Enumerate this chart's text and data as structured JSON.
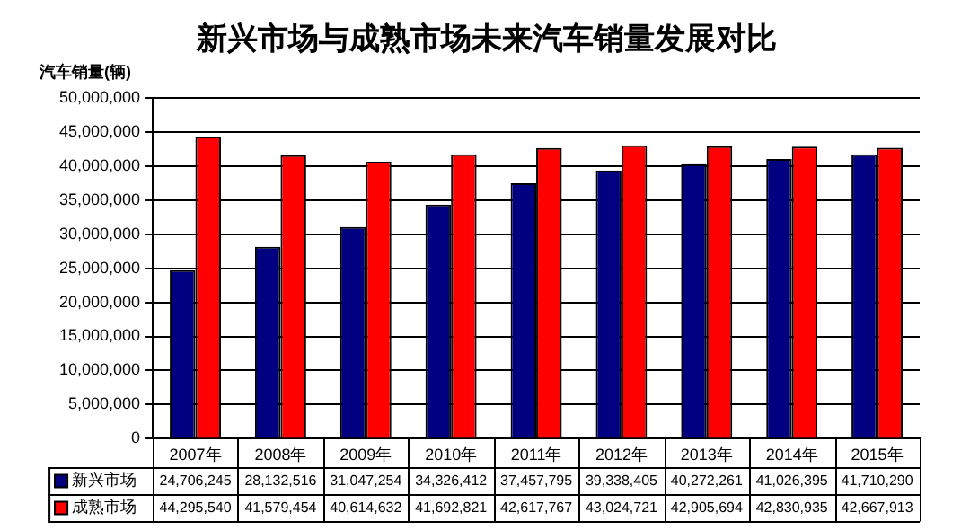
{
  "chart_data": {
    "type": "bar",
    "title": "新兴市场与成熟市场未来汽车销量发展对比",
    "ylabel": "汽车销量(辆)",
    "categories": [
      "2007年",
      "2008年",
      "2009年",
      "2010年",
      "2011年",
      "2012年",
      "2013年",
      "2014年",
      "2015年"
    ],
    "series": [
      {
        "name": "新兴市场",
        "color": "#000080",
        "values": [
          24706245,
          28132516,
          31047254,
          34326412,
          37457795,
          39338405,
          40272261,
          41026395,
          41710290
        ],
        "value_labels": [
          "24,706,245",
          "28,132,516",
          "31,047,254",
          "34,326,412",
          "37,457,795",
          "39,338,405",
          "40,272,261",
          "41,026,395",
          "41,710,290"
        ]
      },
      {
        "name": "成熟市场",
        "color": "#ff0000",
        "values": [
          44295540,
          41579454,
          40614632,
          41692821,
          42617767,
          43024721,
          42905694,
          42830935,
          42667913
        ],
        "value_labels": [
          "44,295,540",
          "41,579,454",
          "40,614,632",
          "41,692,821",
          "42,617,767",
          "43,024,721",
          "42,905,694",
          "42,830,935",
          "42,667,913"
        ]
      }
    ],
    "ylim": [
      0,
      50000000
    ],
    "yticks": [
      0,
      {
        "value": 5000000,
        "label": "5,000,000"
      },
      {
        "value": 10000000,
        "label": "10,000,000"
      },
      {
        "value": 15000000,
        "label": "15,000,000"
      },
      {
        "value": 20000000,
        "label": "20,000,000"
      },
      {
        "value": 25000000,
        "label": "25,000,000"
      },
      {
        "value": 30000000,
        "label": "30,000,000"
      },
      {
        "value": 35000000,
        "label": "35,000,000"
      },
      {
        "value": 40000000,
        "label": "40,000,000"
      },
      {
        "value": 45000000,
        "label": "45,000,000"
      },
      {
        "value": 50000000,
        "label": "50,000,000"
      }
    ],
    "grid": "y",
    "legend": "bottom"
  }
}
